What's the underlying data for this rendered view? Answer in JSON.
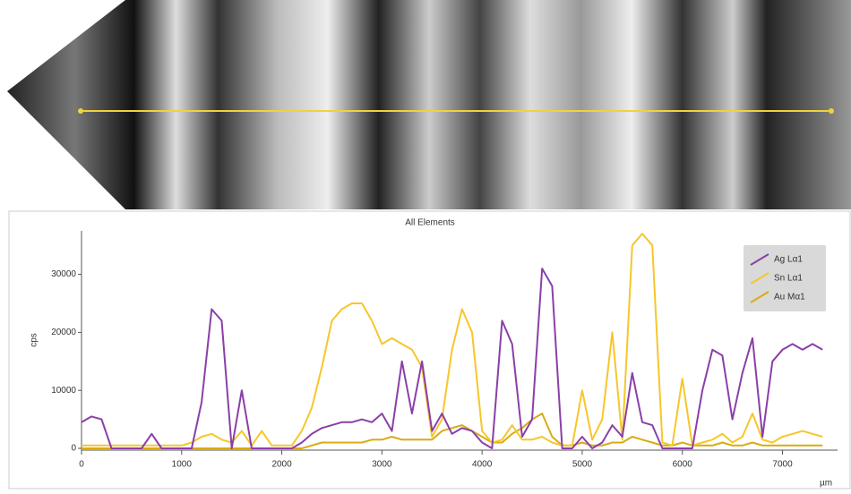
{
  "chart_data": {
    "type": "line",
    "title": "All Elements",
    "y_label": "cps",
    "x_label": "µm",
    "x": [
      0,
      100,
      200,
      300,
      400,
      500,
      600,
      700,
      800,
      900,
      1000,
      1100,
      1200,
      1300,
      1400,
      1500,
      1600,
      1700,
      1800,
      1900,
      2000,
      2100,
      2200,
      2300,
      2400,
      2500,
      2600,
      2700,
      2800,
      2900,
      3000,
      3100,
      3200,
      3300,
      3400,
      3500,
      3600,
      3700,
      3800,
      3900,
      4000,
      4100,
      4200,
      4300,
      4400,
      4500,
      4600,
      4700,
      4800,
      4900,
      5000,
      5100,
      5200,
      5300,
      5400,
      5500,
      5600,
      5700,
      5800,
      5900,
      6000,
      6100,
      6200,
      6300,
      6400,
      6500,
      6600,
      6700,
      6800,
      6900,
      7000,
      7100,
      7200,
      7300,
      7400
    ],
    "series": [
      {
        "name": "Ag Lα1",
        "color": "#8a3fa8",
        "values": [
          4500,
          5500,
          5000,
          0,
          0,
          0,
          0,
          2500,
          0,
          0,
          0,
          0,
          8000,
          24000,
          22000,
          0,
          10000,
          0,
          0,
          0,
          0,
          0,
          1000,
          2500,
          3500,
          4000,
          4500,
          4500,
          5000,
          4500,
          6000,
          3000,
          15000,
          6000,
          15000,
          3000,
          6000,
          2500,
          3500,
          3000,
          1000,
          0,
          22000,
          18000,
          2000,
          5000,
          31000,
          28000,
          0,
          0,
          2000,
          0,
          1000,
          4000,
          2000,
          13000,
          4500,
          4000,
          0,
          0,
          0,
          0,
          10000,
          17000,
          16000,
          5000,
          13000,
          19000,
          2000,
          15000,
          17000,
          18000,
          17000,
          18000,
          17000
        ]
      },
      {
        "name": "Sn Lα1",
        "color": "#f7c62a",
        "values": [
          500,
          500,
          500,
          500,
          500,
          500,
          500,
          500,
          500,
          500,
          500,
          1000,
          2000,
          2500,
          1500,
          1000,
          3000,
          500,
          3000,
          500,
          500,
          500,
          3000,
          7000,
          14000,
          22000,
          24000,
          25000,
          25000,
          22000,
          18000,
          19000,
          18000,
          17000,
          14000,
          2000,
          5000,
          17000,
          24000,
          20000,
          3000,
          1000,
          1500,
          4000,
          1500,
          1500,
          2000,
          1000,
          500,
          500,
          10000,
          1500,
          5000,
          20000,
          1500,
          35000,
          37000,
          35000,
          1000,
          500,
          12000,
          500,
          1000,
          1500,
          2500,
          1000,
          2000,
          6000,
          1500,
          1000,
          2000,
          2500,
          3000,
          2500,
          2000
        ]
      },
      {
        "name": "Au Mα1",
        "color": "#d9ab14",
        "values": [
          0,
          0,
          0,
          0,
          0,
          0,
          0,
          0,
          0,
          0,
          0,
          0,
          0,
          0,
          0,
          0,
          0,
          0,
          0,
          0,
          0,
          0,
          0,
          500,
          1000,
          1000,
          1000,
          1000,
          1000,
          1500,
          1500,
          2000,
          1500,
          1500,
          1500,
          1500,
          3000,
          3500,
          4000,
          3000,
          2000,
          1000,
          1000,
          2500,
          3500,
          5000,
          6000,
          2000,
          500,
          500,
          1000,
          500,
          500,
          1000,
          1000,
          2000,
          1500,
          1000,
          500,
          500,
          1000,
          500,
          500,
          500,
          1000,
          500,
          500,
          1000,
          500,
          500,
          500,
          500,
          500,
          500,
          500
        ]
      }
    ],
    "xlim": [
      0,
      7550
    ],
    "ylim": [
      0,
      37500
    ],
    "xticks": [
      0,
      1000,
      2000,
      3000,
      4000,
      5000,
      6000,
      7000
    ],
    "yticks": [
      0,
      10000,
      20000,
      30000
    ],
    "legend": "upper right"
  }
}
